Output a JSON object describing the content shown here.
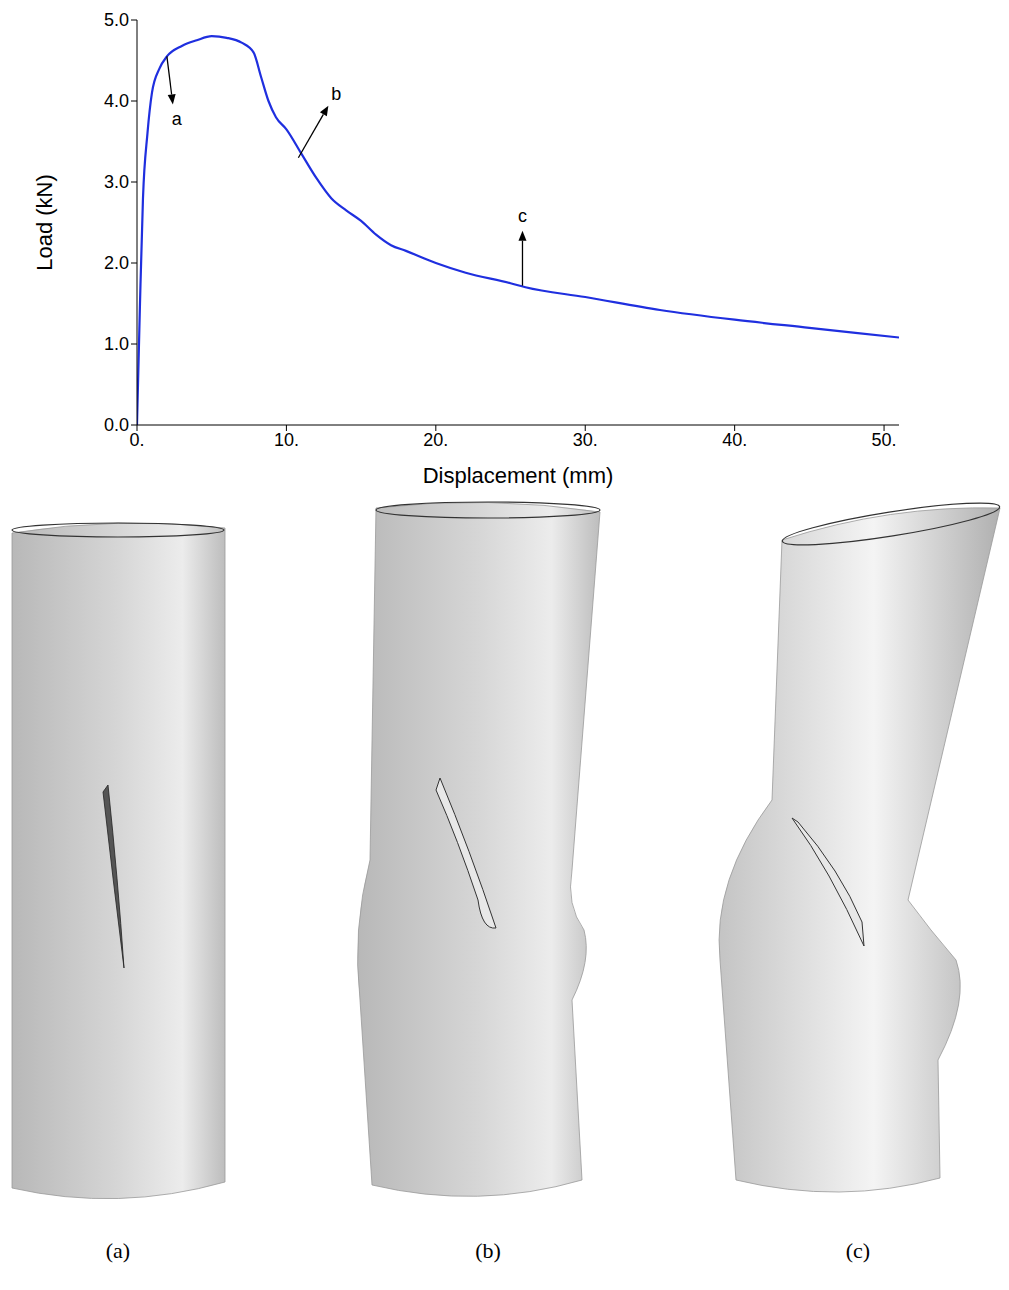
{
  "chart_data": {
    "type": "line",
    "x_label": "Displacement (mm)",
    "y_label": "Load (kN)",
    "color": "#1f2fdf",
    "x": [
      0,
      0.2,
      0.4,
      0.7,
      1,
      1.5,
      2,
      3,
      4,
      5,
      6,
      7,
      7.8,
      8.3,
      8.8,
      9.3,
      10,
      11,
      12,
      13,
      14,
      15,
      16,
      17,
      18,
      20,
      22,
      25,
      26,
      30,
      35,
      40,
      45,
      51
    ],
    "values": [
      0,
      1.5,
      2.8,
      3.6,
      4.1,
      4.4,
      4.55,
      4.68,
      4.75,
      4.8,
      4.78,
      4.72,
      4.6,
      4.3,
      4.0,
      3.8,
      3.65,
      3.35,
      3.05,
      2.8,
      2.65,
      2.52,
      2.35,
      2.22,
      2.15,
      2.0,
      1.88,
      1.75,
      1.7,
      1.58,
      1.42,
      1.3,
      1.2,
      1.08
    ],
    "xlim": [
      0,
      51
    ],
    "xticks": [
      {
        "value": 0,
        "label": "0."
      },
      {
        "value": 10,
        "label": "10."
      },
      {
        "value": 20,
        "label": "20."
      },
      {
        "value": 30,
        "label": "30."
      },
      {
        "value": 40,
        "label": "40."
      },
      {
        "value": 50,
        "label": "50."
      }
    ],
    "ylim": [
      0,
      5
    ],
    "yticks": [
      {
        "value": 0,
        "label": "0.0"
      },
      {
        "value": 1,
        "label": "1.0"
      },
      {
        "value": 2,
        "label": "2.0"
      },
      {
        "value": 3,
        "label": "3.0"
      },
      {
        "value": 4,
        "label": "4.0"
      },
      {
        "value": 5,
        "label": "5.0"
      }
    ],
    "grid": false,
    "annotations": [
      {
        "text": "a",
        "x": 2,
        "y": 4.55
      },
      {
        "text": "b",
        "x": 10.8,
        "y": 3.3
      },
      {
        "text": "c",
        "x": 25.8,
        "y": 1.72
      }
    ]
  },
  "panels": {
    "labels": [
      "(a)",
      "(b)",
      "(c)"
    ]
  }
}
